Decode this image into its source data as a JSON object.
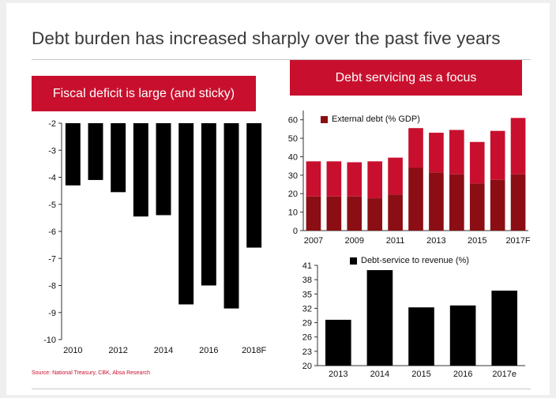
{
  "title": "Debt burden has increased sharply over the past five years",
  "banners": {
    "left": "Fiscal deficit is large (and sticky)",
    "right": "Debt servicing as a focus"
  },
  "source": "Source: National Treasury, CBK, Absa Research",
  "colors": {
    "accent": "#c8102e",
    "dark_red": "#8b0e14",
    "bar_black": "#000000"
  },
  "chart_data": [
    {
      "type": "bar",
      "name": "fiscal-deficit",
      "x": [
        "2010",
        "2011",
        "2012",
        "2013",
        "2014",
        "2015",
        "2016",
        "2017",
        "2018F"
      ],
      "values": [
        -4.3,
        -4.1,
        -4.55,
        -5.45,
        -5.4,
        -8.7,
        -8.0,
        -8.85,
        -6.6
      ],
      "ylim": [
        -10,
        -2
      ],
      "yticks": [
        "-2",
        "-3",
        "-4",
        "-5",
        "-6",
        "-7",
        "-8",
        "-9",
        "-10"
      ],
      "xtick_labels": [
        "2010",
        "2012",
        "2014",
        "2016",
        "2018F"
      ],
      "grid": false
    },
    {
      "type": "bar",
      "name": "external-debt",
      "stacked": true,
      "x": [
        "2007",
        "2008",
        "2009",
        "2010",
        "2011",
        "2012",
        "2013",
        "2014",
        "2015",
        "2016",
        "2017F"
      ],
      "series": [
        {
          "values": [
            18.5,
            18.5,
            18.5,
            17.5,
            19.5,
            34,
            31.5,
            30.5,
            25.5,
            27.5,
            30.5
          ],
          "color": "#8b0e14"
        },
        {
          "values": [
            19,
            19,
            18.5,
            20,
            20,
            21.5,
            21.5,
            24,
            22.5,
            26.5,
            30.5
          ],
          "color": "#c8102e"
        }
      ],
      "legend": "External debt (% GDP)",
      "ylim": [
        0,
        65
      ],
      "yticks": [
        "0",
        "10",
        "20",
        "30",
        "40",
        "50",
        "60"
      ],
      "xtick_labels": [
        "2007",
        "2009",
        "2011",
        "2013",
        "2015",
        "2017F"
      ],
      "grid": false
    },
    {
      "type": "bar",
      "name": "debt-service",
      "x": [
        "2013",
        "2014",
        "2015",
        "2016",
        "2017e"
      ],
      "values": [
        29.6,
        40.0,
        32.2,
        32.6,
        35.7
      ],
      "legend": "Debt-service to revenue (%)",
      "ylim": [
        20,
        41
      ],
      "yticks": [
        "20",
        "23",
        "26",
        "29",
        "32",
        "35",
        "38",
        "41"
      ],
      "grid": false
    }
  ]
}
